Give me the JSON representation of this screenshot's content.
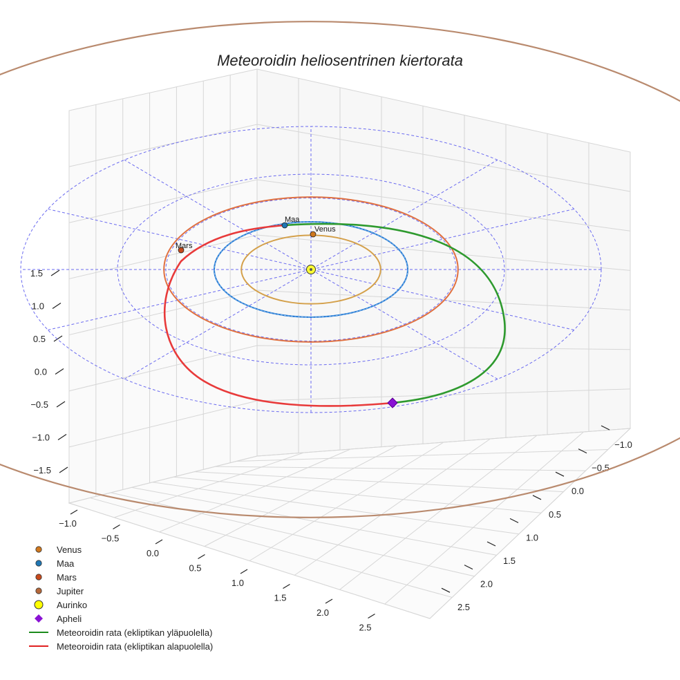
{
  "chart_data": {
    "type": "3d-orbit",
    "title": "Meteoroidin heliosentrinen kiertorata",
    "z_axis": {
      "ticks": [
        "−1.5",
        "−1.0",
        "−0.5",
        "0.0",
        "0.5",
        "1.0",
        "1.5"
      ]
    },
    "x_axis": {
      "ticks": [
        "−1.0",
        "−0.5",
        "0.0",
        "0.5",
        "1.0",
        "1.5",
        "2.0",
        "2.5"
      ]
    },
    "y_axis": {
      "ticks": [
        "−1.0",
        "−0.5",
        "0.0",
        "0.5",
        "1.0",
        "1.5",
        "2.0",
        "2.5"
      ]
    },
    "orbits": [
      {
        "name": "Venus",
        "radius_au": 0.72,
        "color": "#d4a04a"
      },
      {
        "name": "Maa",
        "radius_au": 1.0,
        "color": "#1f77d4"
      },
      {
        "name": "Mars",
        "radius_au": 1.52,
        "color": "#e07040"
      },
      {
        "name": "Jupiter",
        "radius_au": 5.2,
        "color": "#b98a6e"
      }
    ],
    "planet_labels": [
      {
        "name": "Maa",
        "color": "#1f77b4"
      },
      {
        "name": "Venus",
        "color": "#d0781e"
      },
      {
        "name": "Mars",
        "color": "#c84a1c"
      }
    ],
    "ecliptic_reference_rings_au": [
      1.5,
      2.0,
      3.0
    ],
    "meteoroid": {
      "above_ecliptic_color": "#2e9a2e",
      "below_ecliptic_color": "#e83a3a",
      "aphelion_color": "#8a12d4"
    },
    "legend": [
      {
        "label": "Venus",
        "marker": "circle",
        "color": "#d0781e"
      },
      {
        "label": "Maa",
        "marker": "circle",
        "color": "#1f77b4"
      },
      {
        "label": "Mars",
        "marker": "circle",
        "color": "#c84a1c"
      },
      {
        "label": "Jupiter",
        "marker": "circle",
        "color": "#b5683a"
      },
      {
        "label": "Aurinko",
        "marker": "sun",
        "color": "#ffff00"
      },
      {
        "label": "Apheli",
        "marker": "diamond",
        "color": "#8a12d4"
      },
      {
        "label": "Meteoroidin rata (ekliptikan yläpuolella)",
        "marker": "line",
        "color": "#1a8a1a"
      },
      {
        "label": "Meteoroidin rata (ekliptikan alapuolella)",
        "marker": "line",
        "color": "#e02020"
      }
    ]
  }
}
